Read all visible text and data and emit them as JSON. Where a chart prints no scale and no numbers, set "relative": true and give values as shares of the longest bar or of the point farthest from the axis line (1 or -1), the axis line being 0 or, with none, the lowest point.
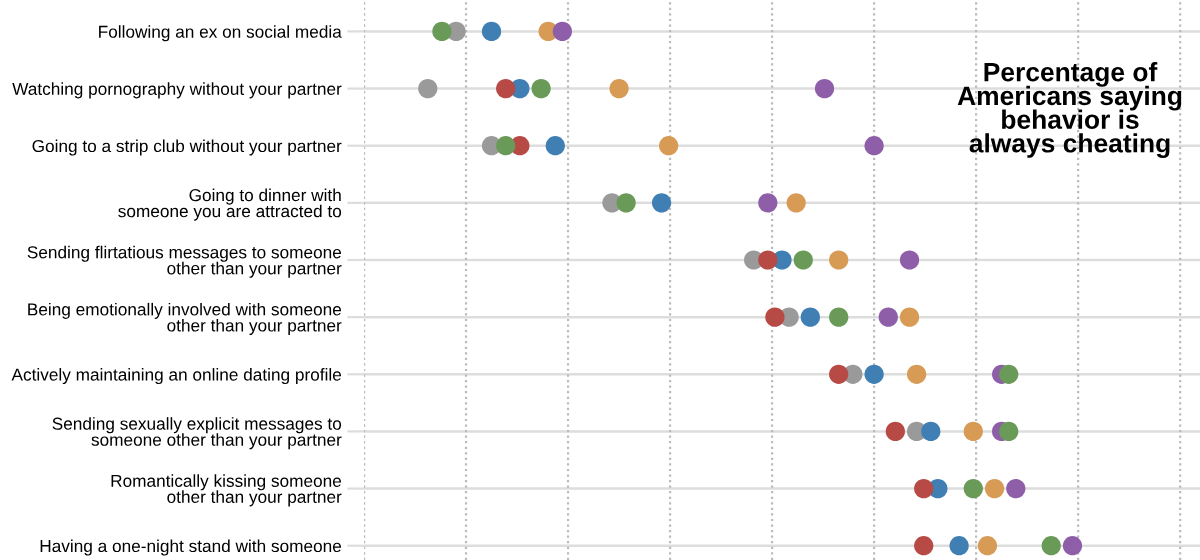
{
  "chart_data": {
    "type": "scatter",
    "orientation": "horizontal",
    "relative": true,
    "title": "Percentage of\nAmericans saying\nbehavior is\nalways cheating",
    "grid": true,
    "legend": false,
    "marker": "circle",
    "categories": [
      "Following an ex on social media",
      "Watching pornography without your partner",
      "Going to a strip club without your partner",
      "Going to dinner with\nsomeone you are attracted to",
      "Sending flirtatious messages to someone\nother than your partner",
      "Being emotionally involved with someone\nother than your partner",
      "Actively maintaining an online dating profile",
      "Sending sexually explicit messages to\nsomeone other than your partner",
      "Romantically kissing someone\nother than your partner",
      "Having a one-night stand with someone"
    ],
    "series": [
      {
        "color": "#9a9a9a",
        "values": [
          0.13,
          0.09,
          0.18,
          0.35,
          0.55,
          0.6,
          0.69,
          0.78,
          null,
          null
        ]
      },
      {
        "color": "#3f7fb3",
        "values": [
          0.18,
          0.22,
          0.27,
          0.42,
          0.59,
          0.63,
          0.72,
          0.8,
          0.81,
          0.84
        ]
      },
      {
        "color": "#b84a45",
        "values": [
          null,
          0.2,
          0.22,
          null,
          0.57,
          0.58,
          0.67,
          0.75,
          0.79,
          0.79
        ]
      },
      {
        "color": "#d79b55",
        "values": [
          0.26,
          0.36,
          0.43,
          0.61,
          0.67,
          0.77,
          0.78,
          0.86,
          0.89,
          0.88
        ]
      },
      {
        "color": "#8e5fa8",
        "values": [
          0.28,
          0.65,
          0.72,
          0.57,
          0.77,
          0.74,
          0.9,
          0.9,
          0.92,
          1.0
        ]
      },
      {
        "color": "#6a9a58",
        "values": [
          0.11,
          0.25,
          0.2,
          0.37,
          0.62,
          0.67,
          0.91,
          0.91,
          0.86,
          0.97
        ]
      }
    ]
  }
}
